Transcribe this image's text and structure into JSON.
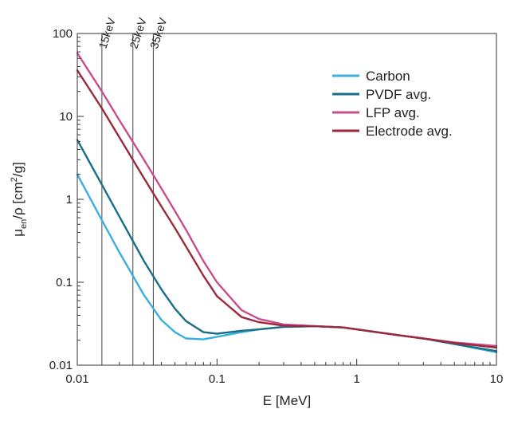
{
  "chart_data": {
    "type": "line",
    "xlabel": "E [MeV]",
    "ylabel_parts": [
      "μ",
      "en",
      "/ρ [cm",
      "2",
      "/g]"
    ],
    "x_scale": "log",
    "y_scale": "log",
    "xlim": [
      0.01,
      10
    ],
    "ylim": [
      0.01,
      100
    ],
    "x_ticks": [
      0.01,
      0.1,
      1,
      10
    ],
    "x_tick_labels": [
      "0.01",
      "0.1",
      "1",
      "10"
    ],
    "y_ticks": [
      0.01,
      0.1,
      1,
      10,
      100
    ],
    "y_tick_labels": [
      "0.01",
      "0.1",
      "1",
      "10",
      "100"
    ],
    "grid": false,
    "legend_position": "top-right",
    "vertical_markers": [
      {
        "x": 0.015,
        "label": "15keV"
      },
      {
        "x": 0.025,
        "label": "25keV"
      },
      {
        "x": 0.035,
        "label": "35keV"
      }
    ],
    "series": [
      {
        "name": "Carbon",
        "color": "#3aaedf",
        "x": [
          0.01,
          0.015,
          0.02,
          0.03,
          0.04,
          0.05,
          0.06,
          0.08,
          0.1,
          0.15,
          0.2,
          0.3,
          0.5,
          0.8,
          1,
          2,
          3,
          5,
          10
        ],
        "y": [
          2.0,
          0.56,
          0.23,
          0.07,
          0.035,
          0.025,
          0.021,
          0.0205,
          0.022,
          0.025,
          0.027,
          0.029,
          0.0295,
          0.0285,
          0.027,
          0.023,
          0.021,
          0.018,
          0.0143
        ]
      },
      {
        "name": "PVDF avg.",
        "color": "#1a6e86",
        "x": [
          0.01,
          0.015,
          0.02,
          0.03,
          0.04,
          0.05,
          0.06,
          0.08,
          0.1,
          0.15,
          0.2,
          0.3,
          0.5,
          0.8,
          1,
          2,
          3,
          5,
          10
        ],
        "y": [
          5.2,
          1.5,
          0.62,
          0.18,
          0.082,
          0.048,
          0.034,
          0.025,
          0.024,
          0.026,
          0.027,
          0.029,
          0.0295,
          0.0285,
          0.027,
          0.023,
          0.021,
          0.018,
          0.0148
        ]
      },
      {
        "name": "LFP avg.",
        "color": "#c94d8b",
        "x": [
          0.01,
          0.015,
          0.02,
          0.03,
          0.04,
          0.05,
          0.06,
          0.08,
          0.1,
          0.15,
          0.2,
          0.3,
          0.5,
          0.8,
          1,
          2,
          3,
          5,
          10
        ],
        "y": [
          58,
          20,
          9.0,
          3.0,
          1.35,
          0.72,
          0.43,
          0.18,
          0.1,
          0.046,
          0.036,
          0.031,
          0.0295,
          0.0285,
          0.027,
          0.023,
          0.021,
          0.0188,
          0.017
        ]
      },
      {
        "name": "Electrode avg.",
        "color": "#9b2a3c",
        "x": [
          0.01,
          0.015,
          0.02,
          0.03,
          0.04,
          0.05,
          0.06,
          0.08,
          0.1,
          0.15,
          0.2,
          0.3,
          0.5,
          0.8,
          1,
          2,
          3,
          5,
          10
        ],
        "y": [
          36,
          12.5,
          5.6,
          1.8,
          0.82,
          0.45,
          0.27,
          0.12,
          0.068,
          0.038,
          0.033,
          0.03,
          0.0295,
          0.0285,
          0.027,
          0.023,
          0.021,
          0.0185,
          0.0163
        ]
      }
    ]
  }
}
